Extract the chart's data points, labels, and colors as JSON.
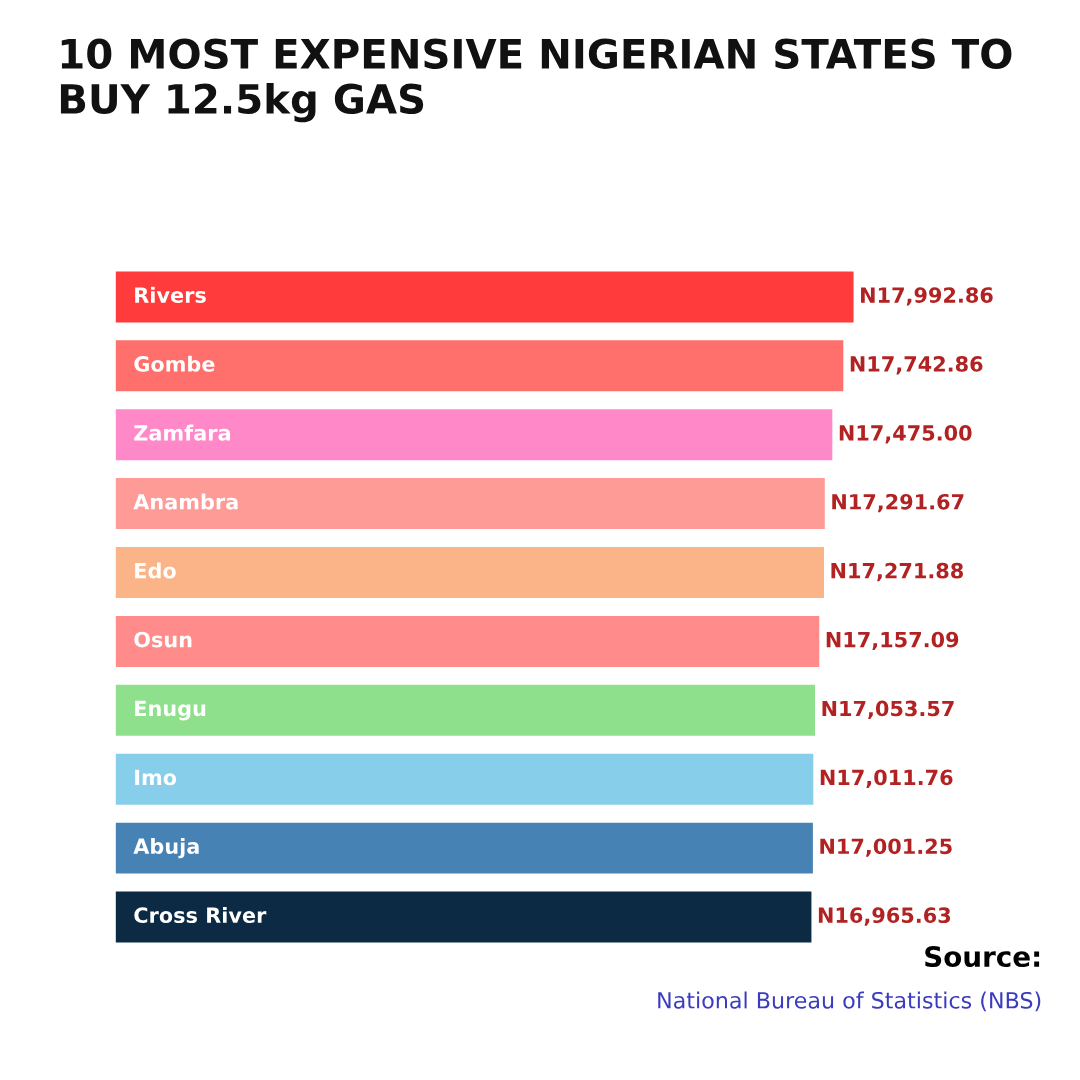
{
  "chart_data": {
    "type": "bar",
    "orientation": "horizontal",
    "title": "10 MOST EXPENSIVE NIGERIAN STATES TO BUY 12.5kg GAS",
    "categories": [
      "Rivers",
      "Gombe",
      "Zamfara",
      "Anambra",
      "Edo",
      "Osun",
      "Enugu",
      "Imo",
      "Abuja",
      "Cross River"
    ],
    "values": [
      17992.86,
      17742.86,
      17475.0,
      17291.67,
      17271.88,
      17157.09,
      17053.57,
      17011.76,
      17001.25,
      16965.63
    ],
    "value_labels": [
      "N17,992.86",
      "N17,742.86",
      "N17,475.00",
      "N17,291.67",
      "N17,271.88",
      "N17,157.09",
      "N17,053.57",
      "N17,011.76",
      "N17,001.25",
      "N16,965.63"
    ],
    "colors": [
      "#ff3b3b",
      "#ff6f6b",
      "#ff88c8",
      "#ff9b96",
      "#fbb487",
      "#ff8c8a",
      "#8fe08c",
      "#87ceeb",
      "#4682b4",
      "#0c2a44"
    ],
    "annotations": [
      "Source:",
      "National Bureau of Statistics (NBS)"
    ]
  }
}
